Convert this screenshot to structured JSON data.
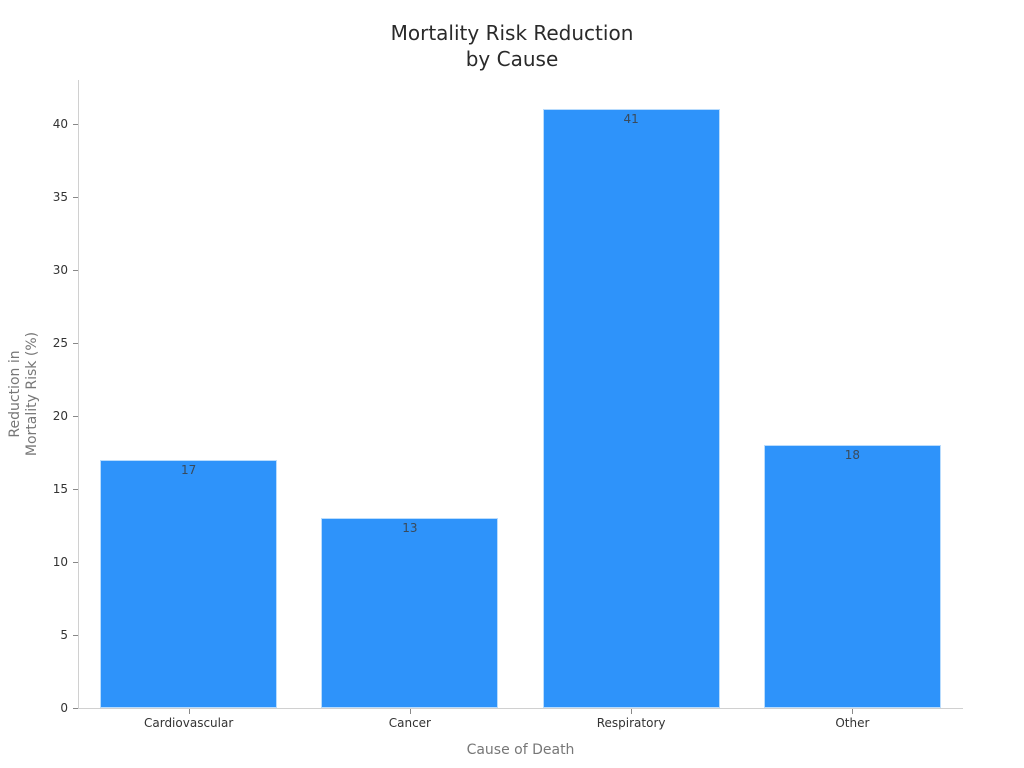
{
  "chart_data": {
    "type": "bar",
    "title": "Mortality Risk Reduction\nby Cause",
    "title_lines": [
      "Mortality Risk Reduction",
      "by Cause"
    ],
    "xlabel": "Cause of Death",
    "ylabel": "Reduction in\nMortality Risk (%)",
    "ylabel_lines": [
      "Reduction in",
      "Mortality Risk (%)"
    ],
    "categories": [
      "Cardiovascular",
      "Cancer",
      "Respiratory",
      "Other"
    ],
    "values": [
      17,
      13,
      41,
      18
    ],
    "data_labels": [
      "17",
      "13",
      "41",
      "18"
    ],
    "yticks": [
      0,
      5,
      10,
      15,
      20,
      25,
      30,
      35,
      40
    ],
    "ylim": [
      0,
      43
    ],
    "grid": false,
    "legend": null,
    "bar_color": "#2e93fa"
  }
}
